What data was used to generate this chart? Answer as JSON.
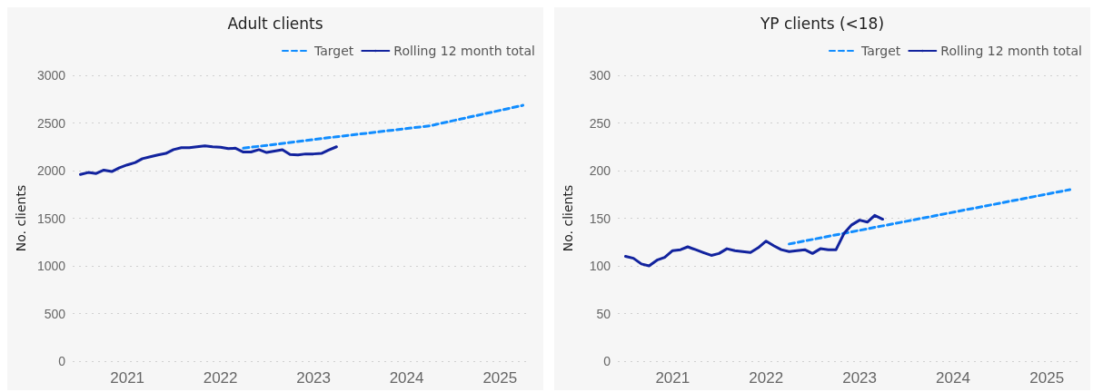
{
  "chart_data": [
    {
      "type": "line",
      "title": "Adult clients",
      "ylabel": "No. clients",
      "xlim": [
        "2020-06",
        "2025-05"
      ],
      "xticks": [
        "2021",
        "2022",
        "2023",
        "2024",
        "2025"
      ],
      "ylim": [
        0,
        3000
      ],
      "yticks": [
        0,
        500,
        1000,
        1500,
        2000,
        2500,
        3000
      ],
      "grid": "y",
      "legend": "top right",
      "marker": "none",
      "series": [
        {
          "name": "Target",
          "color": "#118dff",
          "line_style": "dashed",
          "x": [
            "2022-04",
            "2023-04",
            "2024-04",
            "2025-04"
          ],
          "values": [
            2235,
            2355,
            2470,
            2685
          ]
        },
        {
          "name": "Rolling 12 month total",
          "color": "#12239e",
          "line_style": "solid",
          "x": [
            "2020-07",
            "2020-08",
            "2020-09",
            "2020-10",
            "2020-11",
            "2020-12",
            "2021-01",
            "2021-02",
            "2021-03",
            "2021-04",
            "2021-05",
            "2021-06",
            "2021-07",
            "2021-08",
            "2021-09",
            "2021-10",
            "2021-11",
            "2021-12",
            "2022-01",
            "2022-02",
            "2022-03",
            "2022-04",
            "2022-05",
            "2022-06",
            "2022-07",
            "2022-08",
            "2022-09",
            "2022-10",
            "2022-11",
            "2022-12",
            "2023-01",
            "2023-02",
            "2023-03",
            "2023-04"
          ],
          "values": [
            1960,
            1980,
            1970,
            2005,
            1990,
            2030,
            2060,
            2085,
            2125,
            2145,
            2165,
            2180,
            2220,
            2240,
            2240,
            2250,
            2260,
            2250,
            2245,
            2230,
            2235,
            2195,
            2195,
            2220,
            2190,
            2205,
            2220,
            2170,
            2165,
            2175,
            2175,
            2180,
            2215,
            2250
          ]
        }
      ]
    },
    {
      "type": "line",
      "title": "YP clients (<18)",
      "ylabel": "No. clients",
      "xlim": [
        "2020-06",
        "2025-05"
      ],
      "xticks": [
        "2021",
        "2022",
        "2023",
        "2024",
        "2025"
      ],
      "ylim": [
        0,
        300
      ],
      "yticks": [
        0,
        50,
        100,
        150,
        200,
        250,
        300
      ],
      "grid": "y",
      "legend": "top right",
      "marker": "none",
      "series": [
        {
          "name": "Target",
          "color": "#118dff",
          "line_style": "dashed",
          "x": [
            "2022-04",
            "2023-04",
            "2024-04",
            "2025-04"
          ],
          "values": [
            123,
            142,
            161,
            180
          ]
        },
        {
          "name": "Rolling 12 month total",
          "color": "#12239e",
          "line_style": "solid",
          "x": [
            "2020-07",
            "2020-08",
            "2020-09",
            "2020-10",
            "2020-11",
            "2020-12",
            "2021-01",
            "2021-02",
            "2021-03",
            "2021-04",
            "2021-05",
            "2021-06",
            "2021-07",
            "2021-08",
            "2021-09",
            "2021-10",
            "2021-11",
            "2021-12",
            "2022-01",
            "2022-02",
            "2022-03",
            "2022-04",
            "2022-05",
            "2022-06",
            "2022-07",
            "2022-08",
            "2022-09",
            "2022-10",
            "2022-11",
            "2022-12",
            "2023-01",
            "2023-02",
            "2023-03",
            "2023-04"
          ],
          "values": [
            110,
            108,
            102,
            100,
            106,
            109,
            116,
            117,
            120,
            117,
            114,
            111,
            113,
            118,
            116,
            115,
            114,
            119,
            126,
            121,
            117,
            115,
            116,
            117,
            113,
            118,
            117,
            117,
            134,
            143,
            148,
            146,
            153,
            149
          ]
        }
      ]
    }
  ]
}
